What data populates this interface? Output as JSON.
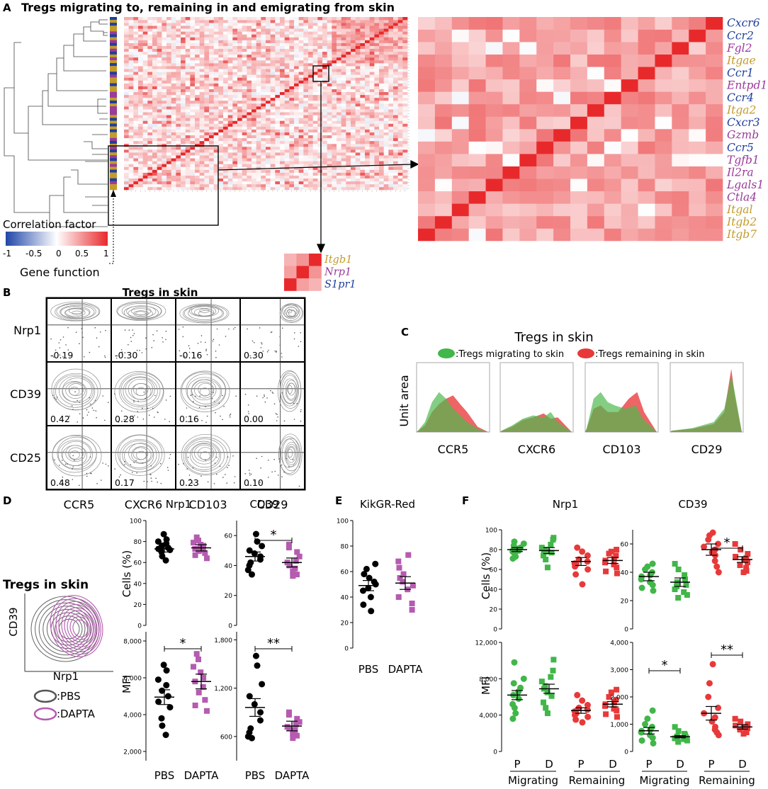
{
  "colors": {
    "blue": "#1f3f9a",
    "purple": "#9a3a9a",
    "gold": "#c39b2b",
    "red": "#e8393a",
    "green": "#41b649",
    "pbs": "#000000",
    "dapta": "#b55bb0",
    "grey_contour": "#9a9a9a"
  },
  "panel_letters": {
    "a": "A",
    "b": "B",
    "c": "C",
    "d": "D",
    "e": "E",
    "f": "F"
  },
  "panel_a": {
    "title": "Tregs migrating to, remaining in and emigrating from skin",
    "colorbar": {
      "title": "Correlation factor",
      "ticks": [
        "-1",
        "-0.5",
        "0",
        "0.5",
        "1"
      ]
    },
    "gene_function_label": "Gene function",
    "zoom_genes": [
      {
        "name": "Cxcr6",
        "cat": "blue"
      },
      {
        "name": "Ccr2",
        "cat": "blue"
      },
      {
        "name": "Fgl2",
        "cat": "purple"
      },
      {
        "name": "Itgae",
        "cat": "gold"
      },
      {
        "name": "Ccr1",
        "cat": "blue"
      },
      {
        "name": "Entpd1",
        "cat": "purple"
      },
      {
        "name": "Ccr4",
        "cat": "blue"
      },
      {
        "name": "Itga2",
        "cat": "gold"
      },
      {
        "name": "Cxcr3",
        "cat": "blue"
      },
      {
        "name": "Gzmb",
        "cat": "purple"
      },
      {
        "name": "Ccr5",
        "cat": "blue"
      },
      {
        "name": "Tgfb1",
        "cat": "purple"
      },
      {
        "name": "Il2ra",
        "cat": "purple"
      },
      {
        "name": "Lgals1",
        "cat": "purple"
      },
      {
        "name": "Ctla4",
        "cat": "purple"
      },
      {
        "name": "Itgal",
        "cat": "gold"
      },
      {
        "name": "Itgb2",
        "cat": "gold"
      },
      {
        "name": "Itgb7",
        "cat": "gold"
      }
    ],
    "small_genes": [
      {
        "name": "Itgb1",
        "cat": "gold"
      },
      {
        "name": "Nrp1",
        "cat": "purple"
      },
      {
        "name": "S1pr1",
        "cat": "blue"
      }
    ]
  },
  "panel_b": {
    "title": "Tregs in skin",
    "rows": [
      "Nrp1",
      "CD39",
      "CD25"
    ],
    "cols": [
      "CCR5",
      "CXCR6",
      "CD103",
      "CD29"
    ],
    "values": [
      [
        "-0.19",
        "-0.30",
        "-0.16",
        "0.30"
      ],
      [
        "0.42",
        "0.28",
        "0.16",
        "0.00"
      ],
      [
        "0.48",
        "0.17",
        "0.23",
        "0.10"
      ]
    ]
  },
  "panel_c": {
    "title": "Tregs in skin",
    "legend_migrating": ":Tregs migrating to skin",
    "legend_remaining": ":Tregs remaining in skin",
    "ylabel": "Unit area",
    "markers": [
      "CCR5",
      "CXCR6",
      "CD103",
      "CD29"
    ]
  },
  "panel_d": {
    "flow_title": "Tregs in skin",
    "flow_xlabel": "Nrp1",
    "flow_ylabel": "CD39",
    "legend_pbs": ":PBS",
    "legend_dapta": ":DAPTA",
    "col_titles": [
      "Nrp1",
      "CD39"
    ],
    "row_labels": [
      "Cells (%)",
      "MFI"
    ],
    "x_labels": [
      "PBS",
      "DAPTA"
    ],
    "ticks": {
      "cells_nrp1": [
        "100",
        "80",
        "60",
        "40",
        "20",
        "0"
      ],
      "cells_cd39": [
        "60",
        "40",
        "20",
        "0"
      ],
      "mfi_nrp1": [
        "8,000",
        "6,000",
        "4,000",
        "2,000"
      ],
      "mfi_cd39": [
        "1,800",
        "1,200",
        "600"
      ]
    },
    "sig": {
      "cells_cd39": "*",
      "mfi_nrp1": "*",
      "mfi_cd39": "**"
    }
  },
  "panel_e": {
    "title": "KikGR-Red",
    "ticks": [
      "100",
      "80",
      "60",
      "40",
      "20",
      "0"
    ],
    "x_labels": [
      "PBS",
      "DAPTA"
    ]
  },
  "panel_f": {
    "col_titles": [
      "Nrp1",
      "CD39"
    ],
    "row_labels": [
      "Cells (%)",
      "MFI"
    ],
    "x_labels": [
      "P",
      "D",
      "P",
      "D"
    ],
    "group_labels": [
      "Migrating",
      "Remaining"
    ],
    "ticks": {
      "cells_nrp1": [
        "100",
        "80",
        "60",
        "40",
        "20",
        "0"
      ],
      "cells_cd39": [
        "60",
        "40",
        "20",
        "0"
      ],
      "mfi_nrp1": [
        "12,000",
        "8,000",
        "4,000",
        "0"
      ],
      "mfi_cd39": [
        "4,000",
        "3,000",
        "2,000",
        "1,000",
        "0"
      ]
    },
    "sig": {
      "cells_cd39": "*",
      "mfi_cd39_mig": "*",
      "mfi_cd39_rem": "**"
    }
  },
  "chart_data": [
    {
      "type": "heatmap",
      "title": "Tregs migrating to, remaining in and emigrating from skin",
      "zlim": [
        -1,
        1
      ],
      "zlabel": "Correlation factor",
      "zoom_genes": [
        "Cxcr6",
        "Ccr2",
        "Fgl2",
        "Itgae",
        "Ccr1",
        "Entpd1",
        "Ccr4",
        "Itga2",
        "Cxcr3",
        "Gzmb",
        "Ccr5",
        "Tgfb1",
        "Il2ra",
        "Lgals1",
        "Ctla4",
        "Itgal",
        "Itgb2",
        "Itgb7"
      ],
      "diagonal": 1
    },
    {
      "type": "table",
      "title": "Tregs in skin",
      "rows": [
        "Nrp1",
        "CD39",
        "CD25"
      ],
      "columns": [
        "CCR5",
        "CXCR6",
        "CD103",
        "CD29"
      ],
      "values": [
        [
          -0.19,
          -0.3,
          -0.16,
          0.3
        ],
        [
          0.42,
          0.28,
          0.16,
          0.0
        ],
        [
          0.48,
          0.17,
          0.23,
          0.1
        ]
      ]
    },
    {
      "type": "scatter",
      "panel": "D",
      "xlabel": "",
      "ylabel": "Cells (%)",
      "title": "Nrp1",
      "ylim": [
        0,
        100
      ],
      "series": [
        {
          "name": "PBS",
          "mean": 73,
          "values": [
            87,
            82,
            80,
            78,
            76,
            74,
            73,
            72,
            70,
            66,
            62
          ]
        },
        {
          "name": "DAPTA",
          "mean": 74,
          "values": [
            84,
            81,
            79,
            77,
            76,
            73,
            72,
            71,
            69,
            67,
            64
          ]
        }
      ]
    },
    {
      "type": "scatter",
      "panel": "D",
      "ylabel": "Cells (%)",
      "title": "CD39",
      "ylim": [
        0,
        70
      ],
      "series": [
        {
          "name": "PBS",
          "mean": 46,
          "values": [
            61,
            56,
            53,
            50,
            48,
            46,
            44,
            42,
            40,
            37,
            34
          ]
        },
        {
          "name": "DAPTA",
          "mean": 42,
          "values": [
            54,
            52,
            49,
            46,
            43,
            42,
            40,
            38,
            36,
            34,
            33
          ]
        }
      ]
    },
    {
      "type": "scatter",
      "panel": "D",
      "ylabel": "MFI",
      "title": "Nrp1",
      "ylim": [
        1500,
        8500
      ],
      "series": [
        {
          "name": "PBS",
          "mean": 4950,
          "values": [
            6700,
            6400,
            5900,
            5600,
            5300,
            5000,
            4700,
            4400,
            3800,
            3400,
            2900
          ]
        },
        {
          "name": "DAPTA",
          "mean": 5800,
          "values": [
            7300,
            7000,
            6600,
            6300,
            6000,
            5800,
            5500,
            5200,
            4800,
            4500,
            4200
          ]
        }
      ]
    },
    {
      "type": "scatter",
      "panel": "D",
      "ylabel": "MFI",
      "title": "CD39",
      "ylim": [
        300,
        1900
      ],
      "series": [
        {
          "name": "PBS",
          "mean": 960,
          "values": [
            1600,
            1480,
            1250,
            1100,
            1000,
            900,
            800,
            700,
            650,
            600,
            580
          ]
        },
        {
          "name": "DAPTA",
          "mean": 730,
          "values": [
            900,
            870,
            820,
            780,
            750,
            720,
            700,
            680,
            640,
            610,
            580
          ]
        }
      ]
    },
    {
      "type": "scatter",
      "panel": "E",
      "title": "KikGR-Red",
      "ylim": [
        0,
        100
      ],
      "series": [
        {
          "name": "PBS",
          "mean": 49,
          "values": [
            66,
            62,
            58,
            55,
            52,
            50,
            47,
            45,
            40,
            34,
            29
          ]
        },
        {
          "name": "DAPTA",
          "mean": 51,
          "values": [
            73,
            68,
            63,
            58,
            55,
            52,
            49,
            46,
            40,
            35,
            30
          ]
        }
      ]
    },
    {
      "type": "scatter",
      "panel": "F",
      "title": "Nrp1",
      "ylabel": "Cells (%)",
      "ylim": [
        0,
        100
      ],
      "series": [
        {
          "name": "Migrating P",
          "mean": 80,
          "values": [
            88,
            86,
            84,
            82,
            81,
            80,
            79,
            78,
            76,
            73,
            71
          ]
        },
        {
          "name": "Migrating D",
          "mean": 79,
          "values": [
            92,
            90,
            85,
            82,
            80,
            79,
            78,
            77,
            74,
            70,
            62
          ]
        },
        {
          "name": "Remaining P",
          "mean": 68,
          "values": [
            82,
            78,
            74,
            70,
            68,
            66,
            65,
            63,
            60,
            55,
            45
          ]
        },
        {
          "name": "Remaining D",
          "mean": 69,
          "values": [
            80,
            78,
            76,
            74,
            71,
            69,
            67,
            65,
            62,
            58,
            56
          ]
        }
      ]
    },
    {
      "type": "scatter",
      "panel": "F",
      "title": "CD39",
      "ylabel": "Cells (%)",
      "ylim": [
        0,
        70
      ],
      "series": [
        {
          "name": "Migrating P",
          "mean": 37,
          "values": [
            46,
            44,
            42,
            40,
            38,
            37,
            35,
            33,
            31,
            29,
            27
          ]
        },
        {
          "name": "Migrating D",
          "mean": 33,
          "values": [
            46,
            42,
            38,
            35,
            33,
            31,
            30,
            28,
            26,
            24,
            22
          ]
        },
        {
          "name": "Remaining P",
          "mean": 56,
          "values": [
            68,
            66,
            63,
            60,
            58,
            56,
            54,
            52,
            48,
            44,
            40
          ]
        },
        {
          "name": "Remaining D",
          "mean": 49,
          "values": [
            60,
            56,
            53,
            51,
            50,
            49,
            47,
            45,
            43,
            41,
            40
          ]
        }
      ]
    },
    {
      "type": "scatter",
      "panel": "F",
      "title": "Nrp1",
      "ylabel": "MFI",
      "ylim": [
        0,
        12000
      ],
      "series": [
        {
          "name": "Migrating P",
          "mean": 6200,
          "values": [
            9800,
            8000,
            7500,
            7000,
            6600,
            6200,
            5800,
            5200,
            4800,
            4200,
            3600
          ]
        },
        {
          "name": "Migrating D",
          "mean": 6900,
          "values": [
            10100,
            8900,
            8200,
            7700,
            7200,
            6900,
            6500,
            6100,
            5400,
            4800,
            4200
          ]
        },
        {
          "name": "Remaining P",
          "mean": 4500,
          "values": [
            6200,
            5600,
            5100,
            4800,
            4600,
            4400,
            4200,
            4000,
            3800,
            3500,
            3200
          ]
        },
        {
          "name": "Remaining D",
          "mean": 5200,
          "values": [
            6800,
            6500,
            6000,
            5700,
            5400,
            5200,
            5000,
            4700,
            4500,
            4100,
            3800
          ]
        }
      ]
    },
    {
      "type": "scatter",
      "panel": "F",
      "title": "CD39",
      "ylabel": "MFI",
      "ylim": [
        0,
        4000
      ],
      "series": [
        {
          "name": "Migrating P",
          "mean": 760,
          "values": [
            1500,
            1200,
            1000,
            900,
            800,
            750,
            700,
            600,
            500,
            400,
            300
          ]
        },
        {
          "name": "Migrating D",
          "mean": 540,
          "values": [
            900,
            750,
            650,
            600,
            550,
            520,
            500,
            480,
            450,
            400,
            350
          ]
        },
        {
          "name": "Remaining P",
          "mean": 1400,
          "values": [
            3200,
            2500,
            2000,
            1600,
            1400,
            1250,
            1100,
            900,
            800,
            700,
            600
          ]
        },
        {
          "name": "Remaining D",
          "mean": 900,
          "values": [
            1200,
            1100,
            1000,
            950,
            900,
            880,
            850,
            800,
            750,
            700,
            650
          ]
        }
      ]
    }
  ]
}
